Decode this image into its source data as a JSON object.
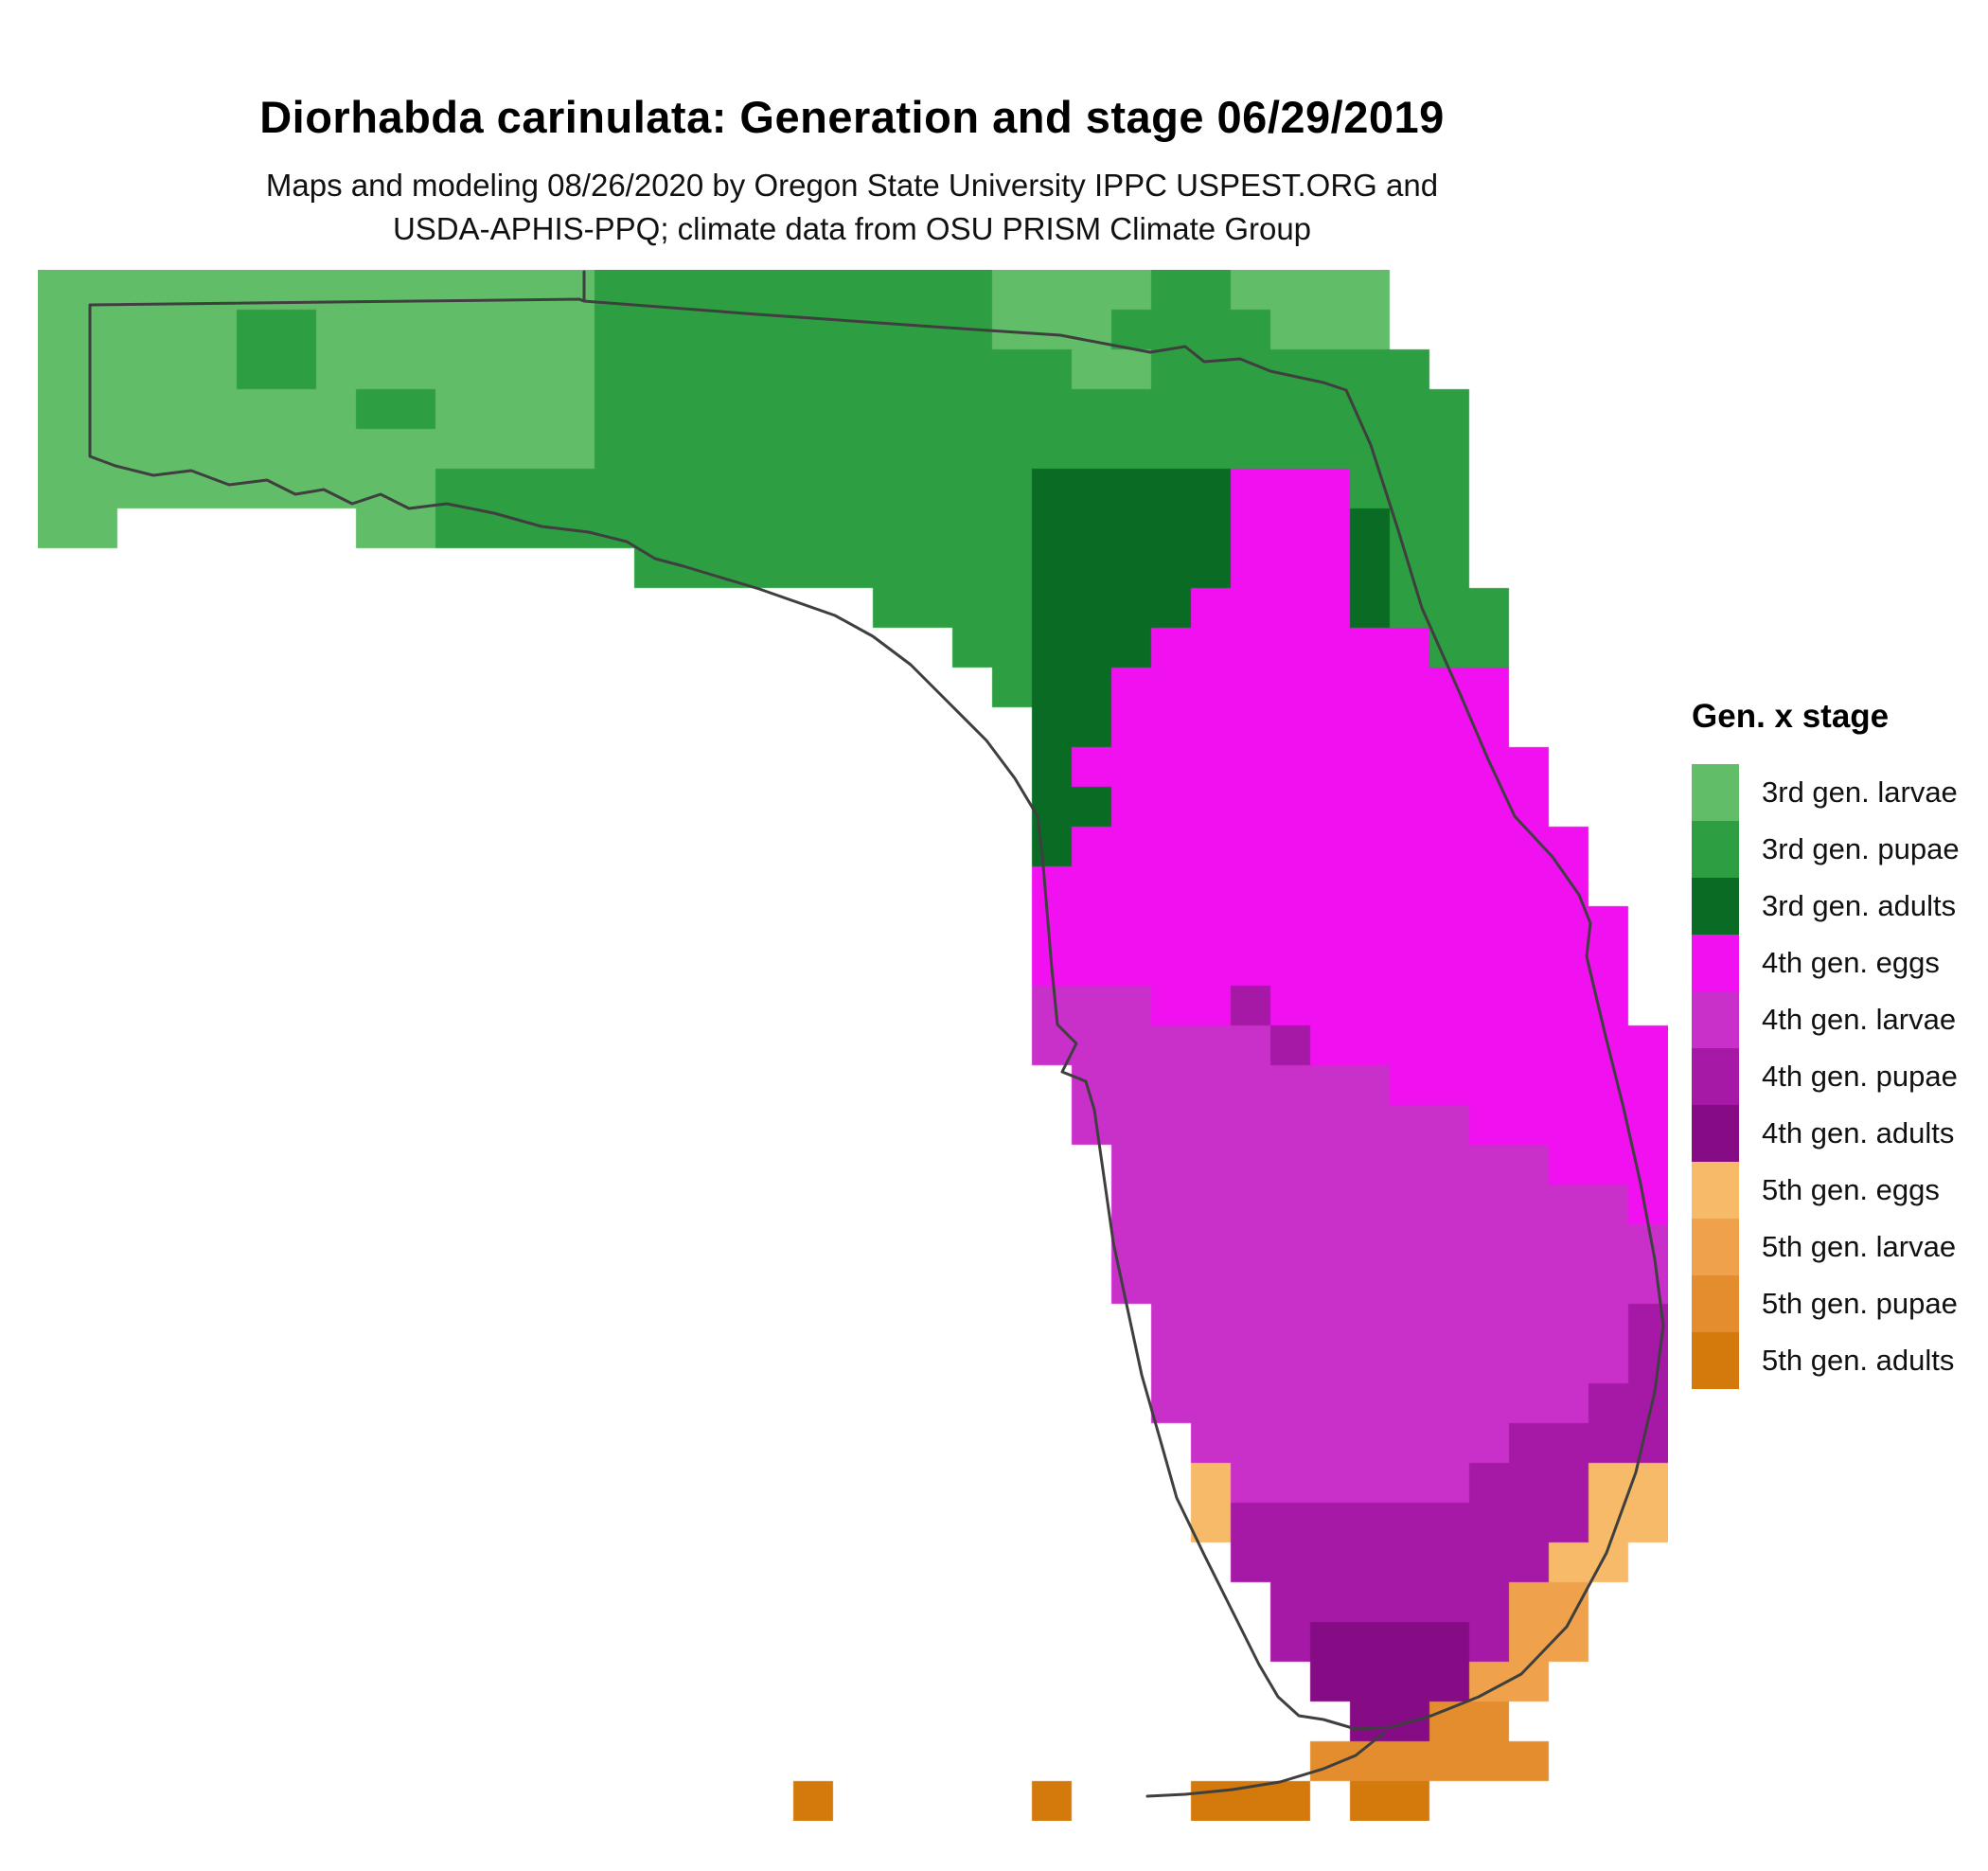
{
  "header": {
    "title": "Diorhabda carinulata: Generation and stage 06/29/2019",
    "subtitle_line1": "Maps and modeling 08/26/2020 by Oregon State University IPPC USPEST.ORG and",
    "subtitle_line2": "USDA-APHIS-PPQ; climate data from OSU PRISM Climate Group"
  },
  "legend": {
    "title": "Gen. x stage",
    "items": [
      {
        "label": "3rd gen. larvae",
        "color": "#62bd69"
      },
      {
        "label": "3rd gen. pupae",
        "color": "#2d9e41"
      },
      {
        "label": "3rd gen. adults",
        "color": "#0a6b24"
      },
      {
        "label": "4th gen. eggs",
        "color": "#f010f0"
      },
      {
        "label": "4th gen. larvae",
        "color": "#c92fc9"
      },
      {
        "label": "4th gen. pupae",
        "color": "#a619a6"
      },
      {
        "label": "4th gen. adults",
        "color": "#850c85"
      },
      {
        "label": "5th gen. eggs",
        "color": "#f7ba68"
      },
      {
        "label": "5th gen. larvae",
        "color": "#efa24b"
      },
      {
        "label": "5th gen. pupae",
        "color": "#e38d2e"
      },
      {
        "label": "5th gen. adults",
        "color": "#d4790c"
      }
    ]
  },
  "map": {
    "region_label": "Florida",
    "outline_color": "#3f3f3f",
    "grid_encoding": "chars a-k index into legend.items colors; . = empty",
    "grid": [
      "aaaaaaaaaaaaaabbbbbbbbbbaaaabbaaaa.......",
      "aaaaabbaaaaaaabbbbbbbbbbaaabbbbaaa.......",
      "aaaaabbaaaaaaabbbbbbbbbbbbaabbbbbbb......",
      "aaaaaaaabbaaaabbbbbbbbbbbbbbbbbbbbbb.....",
      "aaaaaaaaaaaaaabbbbbbbbbbbbbbbbbbbbbb.....",
      "aaaaaaaaaabbbbbbbbbbbbbbbcccccdddbbb.....",
      "aa......aabbbbbbbbbbbbbbbcccccdddcbb.....",
      "...............bbbbbbbbbbcccccdddcbb.....",
      ".....................bbbbccccddddcbbb....",
      ".......................bbcccdddddddbb....",
      "........................bccdddddddddd....",
      ".........................ccdddddddddd....",
      ".........................cdddddddddddd...",
      ".........................ccddddddddddd...",
      ".........................cddddddddddddd..",
      ".........................dddddddddddddd..",
      ".........................ddddddddddddddd.",
      ".........................ddddddddddddddd.",
      ".........................eeeddfddddddddd.",
      ".........................eeeeeefddddddddd",
      "..........................eeeeeeeeddddddd",
      "..........................eeeeeeeeeeddddd",
      "...........................eeeeeeeeeeeddd",
      "...........................eeeeeeeeeeeeed",
      "...........................eeeeeeeeeeeeee",
      "...........................eeeeeeeeeeeeee",
      "............................eeeeeeeeeeeef",
      "............................eeeeeeeeeeeef",
      "............................eeeeeeeeeeeff",
      ".............................eeeeeeeeffff",
      ".............................heeeeeefffhh",
      ".............................hfffffffffhh",
      "..............................ffffffffhh.",
      "...............................ffffffii..",
      "...............................fggggfii..",
      "................................ggggii...",
      ".................................ggjj....",
      "................................jjjjjj...",
      "...................k.....k...kkk.kk......"
    ]
  }
}
